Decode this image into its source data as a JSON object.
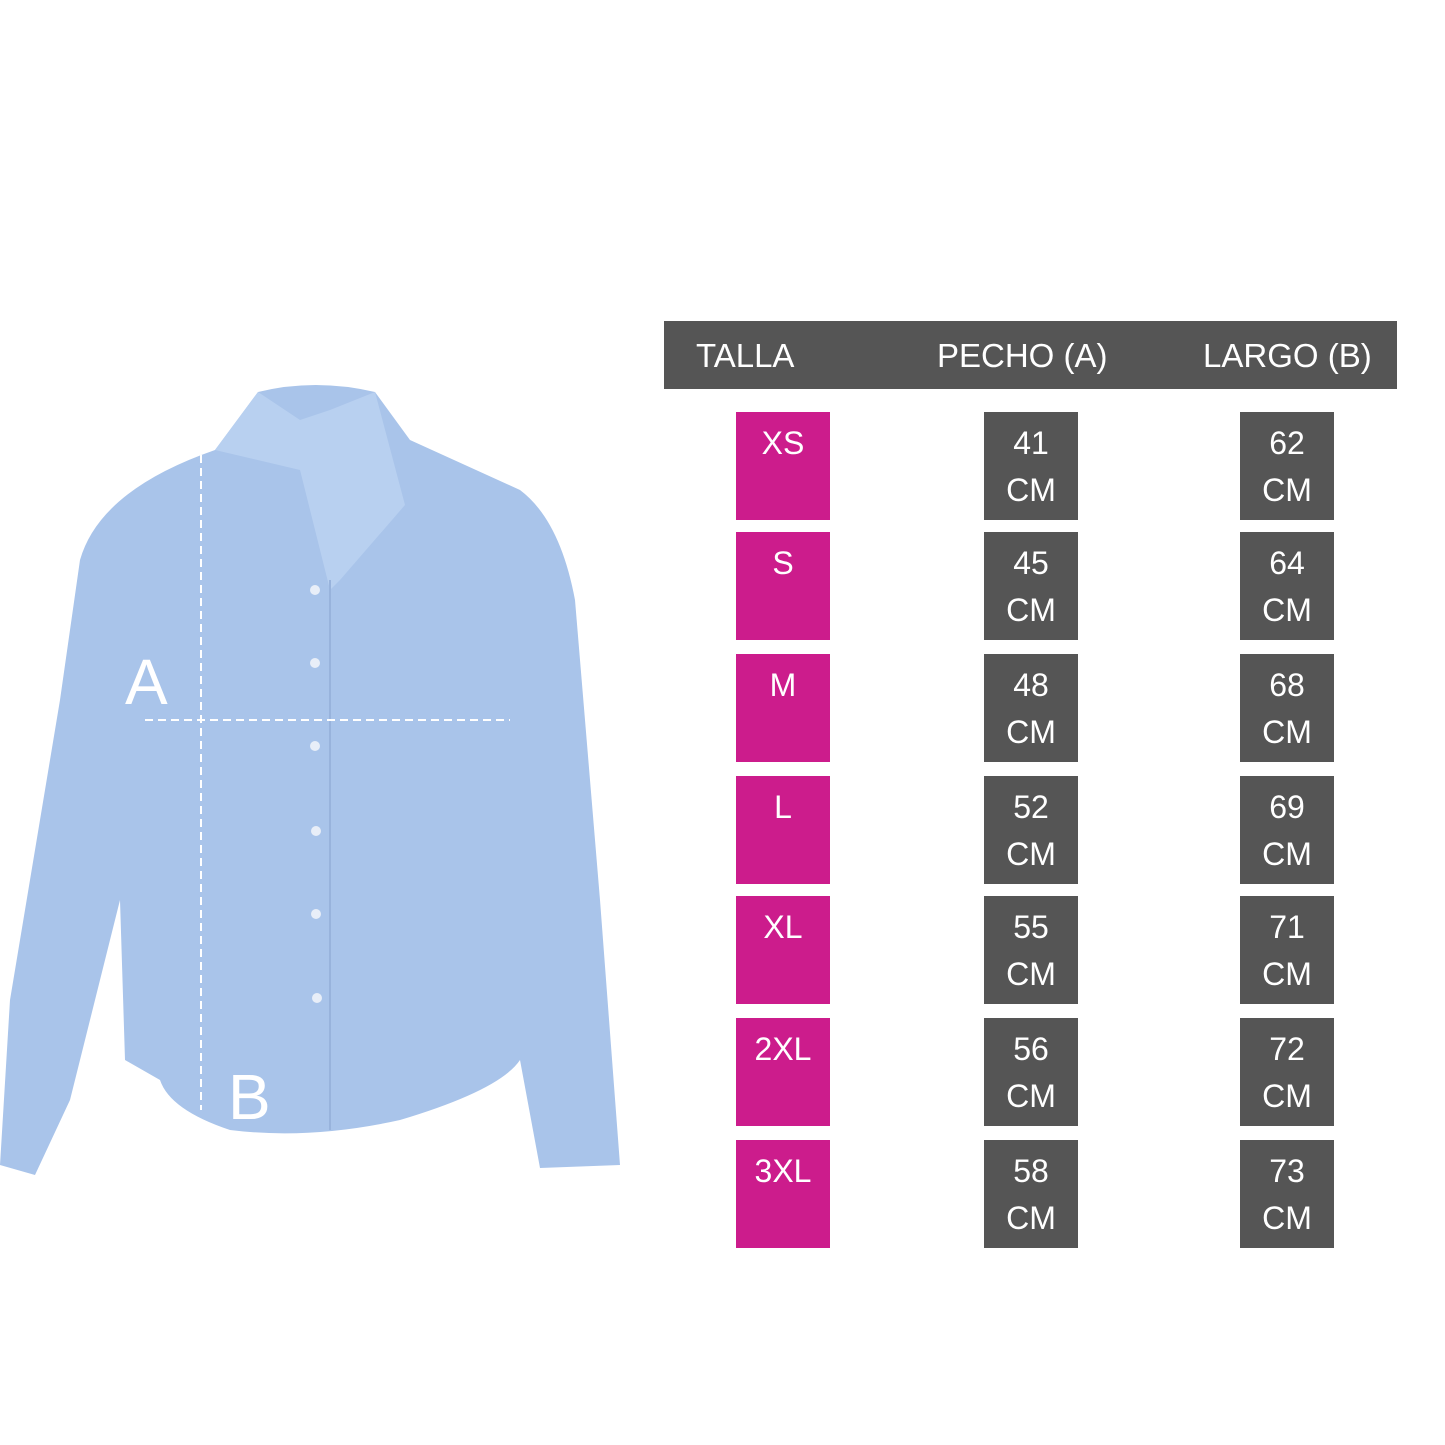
{
  "colors": {
    "header": "#555555",
    "size": "#cc1c8c",
    "measure": "#555555",
    "shirt": "#a9c4ea"
  },
  "header": {
    "talla": "TALLA",
    "pecho": "PECHO (A)",
    "largo": "LARGO (B)"
  },
  "image": {
    "label_a": "A",
    "label_b": "B"
  },
  "rows": [
    {
      "talla": "XS",
      "pecho": "41",
      "largo": "62",
      "unit": "CM"
    },
    {
      "talla": "S",
      "pecho": "45",
      "largo": "64",
      "unit": "CM"
    },
    {
      "talla": "M",
      "pecho": "48",
      "largo": "68",
      "unit": "CM"
    },
    {
      "talla": "L",
      "pecho": "52",
      "largo": "69",
      "unit": "CM"
    },
    {
      "talla": "XL",
      "pecho": "55",
      "largo": "71",
      "unit": "CM"
    },
    {
      "talla": "2XL",
      "pecho": "56",
      "largo": "72",
      "unit": "CM"
    },
    {
      "talla": "3XL",
      "pecho": "58",
      "largo": "73",
      "unit": "CM"
    }
  ]
}
